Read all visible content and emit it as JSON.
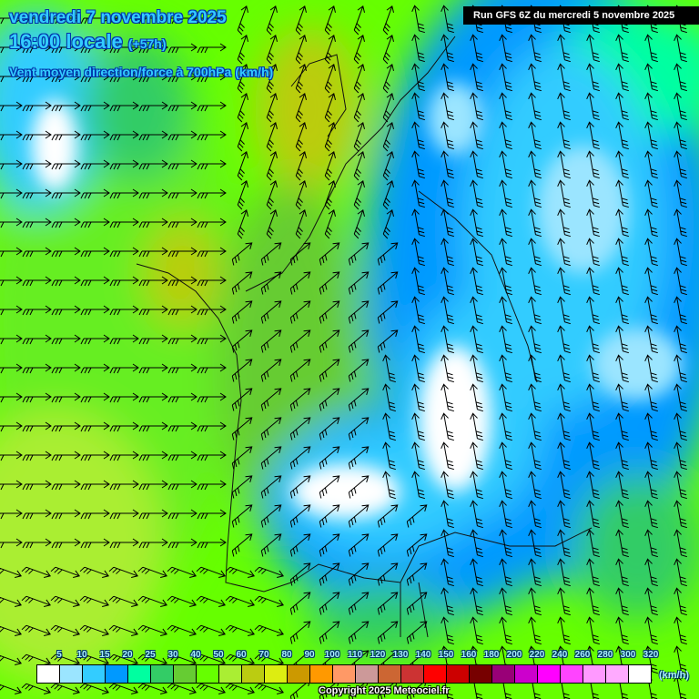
{
  "header": {
    "date": "vendredi 7 novembre 2025",
    "time": "16:00 locale",
    "lead": "(+57h)",
    "parameter": "Vent moyen direction/force à 700hPa (km/h)",
    "run": "Run GFS 6Z du mercredi 5 novembre 2025"
  },
  "legend": {
    "unit": "(km/h)",
    "labels": [
      "5",
      "10",
      "15",
      "20",
      "25",
      "30",
      "40",
      "50",
      "60",
      "70",
      "80",
      "90",
      "100",
      "110",
      "120",
      "130",
      "140",
      "150",
      "160",
      "180",
      "200",
      "220",
      "240",
      "260",
      "280",
      "300",
      "320"
    ],
    "colors": [
      "#ffffff",
      "#9be5ff",
      "#33ccff",
      "#0099ff",
      "#00ffa0",
      "#33cc66",
      "#66cc33",
      "#66ff00",
      "#aaee33",
      "#bbcc11",
      "#dded11",
      "#cc9900",
      "#ff9900",
      "#ff9966",
      "#cc9999",
      "#cc6633",
      "#cc3333",
      "#ff0000",
      "#cc0000",
      "#770000",
      "#990077",
      "#cc00cc",
      "#ff00ff",
      "#ff44ff",
      "#ff99ff",
      "#ffaaff",
      "#ffffff"
    ]
  },
  "footer": {
    "copyright": "Copyright 2025 Meteociel.fr"
  }
}
